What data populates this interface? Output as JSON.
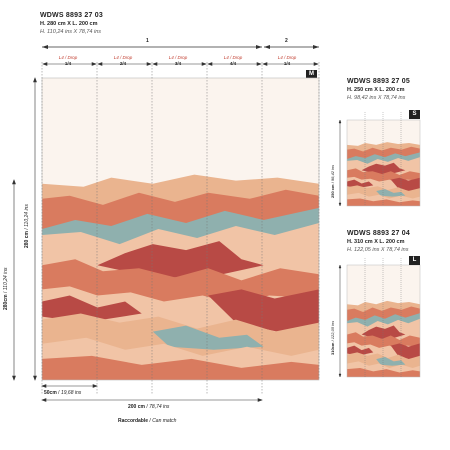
{
  "main": {
    "code": "WDWS 8893 27 03",
    "size_cm": "H. 280 cm X L. 200 cm",
    "size_in": "H. 110,24 ins X 78,74 ins",
    "badge": "M",
    "panel_group_1": "1",
    "panel_group_2": "2",
    "drops": [
      {
        "label": "L4 / Drop",
        "num": "1/4"
      },
      {
        "label": "L4 / Drop",
        "num": "2/4"
      },
      {
        "label": "L4 / Drop",
        "num": "3/4"
      },
      {
        "label": "L4 / Drop",
        "num": "4/4"
      },
      {
        "label": "L4 / Drop",
        "num": "1/4"
      }
    ],
    "height_cm": "280 cm",
    "height_in": "110,24 ins",
    "height_total_cm": "280cm",
    "height_total_in": "110,24 ins",
    "drop_width": "50cm",
    "drop_width_in": "19,68 ins",
    "total_width": "200 cm",
    "total_width_in": "78,74 ins",
    "raccord_label": "Raccordable",
    "raccord_label_en": "Can match"
  },
  "small": {
    "code": "WDWS 8893 27 05",
    "size_cm": "H. 250 cm X L. 200 cm",
    "size_in": "H. 98,42 ins X 78,74 ins",
    "badge": "S",
    "height_cm": "250 cm",
    "height_in": "98,42 ins"
  },
  "large": {
    "code": "WDWS 8893 27 04",
    "size_cm": "H. 310 cm X L. 200 cm",
    "size_in": "H. 122,05 ins X 78,74 ins",
    "badge": "L",
    "height_cm": "310cm",
    "height_in": "122,05 ins"
  },
  "colors": {
    "terracotta": "#d97b5f",
    "rust": "#b84a45",
    "sand": "#eab48f",
    "blush": "#f1c4a6",
    "teal": "#8fb0ae",
    "cream": "#f8ece0",
    "paper": "#fbf4ee"
  }
}
